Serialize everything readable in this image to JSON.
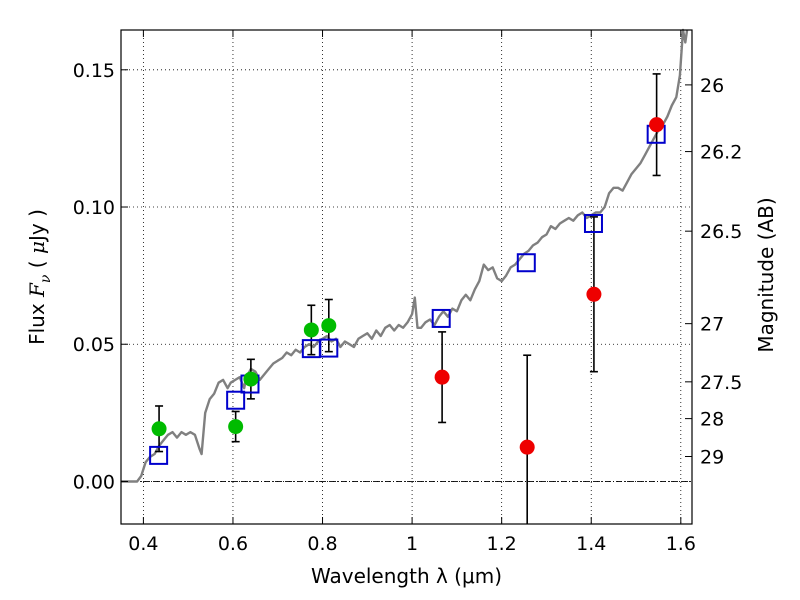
{
  "chart_data": {
    "type": "scatter",
    "title": "",
    "xlabel": "Wavelength  λ (μm)",
    "ylabel": {
      "prefix": "Flux  ",
      "symbol": "F",
      "subscript": "ν",
      "unit_open": " ( ",
      "unit_mu": "μ",
      "unit_rest": "Jy )"
    },
    "y2label": "Magnitude (AB)",
    "xlim": [
      0.35,
      1.625
    ],
    "ylim": [
      -0.0155,
      0.1645
    ],
    "xticks": [
      0.4,
      0.6,
      0.8,
      1.0,
      1.2,
      1.4,
      1.6
    ],
    "xtick_labels": [
      "0.4",
      "0.6",
      "0.8",
      "1",
      "1.2",
      "1.4",
      "1.6"
    ],
    "yticks": [
      0.0,
      0.05,
      0.1,
      0.15
    ],
    "ytick_labels": [
      "0.00",
      "0.05",
      "0.10",
      "0.15"
    ],
    "y2ticks": [
      {
        "label": "26",
        "flux": 0.1445
      },
      {
        "label": "26.2",
        "flux": 0.1202
      },
      {
        "label": "26.5",
        "flux": 0.0912
      },
      {
        "label": "27",
        "flux": 0.0575
      },
      {
        "label": "27.5",
        "flux": 0.0363
      },
      {
        "label": "28",
        "flux": 0.0229
      },
      {
        "label": "29",
        "flux": 0.0091
      }
    ],
    "grid": true,
    "zero_line": true,
    "series": [
      {
        "kind": "template",
        "color": "#808080",
        "points": [
          [
            0.35,
            0.0
          ],
          [
            0.386,
            0.0
          ],
          [
            0.395,
            0.002
          ],
          [
            0.405,
            0.007
          ],
          [
            0.415,
            0.009
          ],
          [
            0.425,
            0.01
          ],
          [
            0.435,
            0.013
          ],
          [
            0.445,
            0.015
          ],
          [
            0.455,
            0.017
          ],
          [
            0.465,
            0.018
          ],
          [
            0.475,
            0.016
          ],
          [
            0.485,
            0.018
          ],
          [
            0.495,
            0.017
          ],
          [
            0.505,
            0.018
          ],
          [
            0.515,
            0.017
          ],
          [
            0.525,
            0.012
          ],
          [
            0.53,
            0.01
          ],
          [
            0.538,
            0.025
          ],
          [
            0.548,
            0.03
          ],
          [
            0.558,
            0.032
          ],
          [
            0.568,
            0.036
          ],
          [
            0.578,
            0.037
          ],
          [
            0.588,
            0.034
          ],
          [
            0.595,
            0.036
          ],
          [
            0.605,
            0.037
          ],
          [
            0.615,
            0.038
          ],
          [
            0.625,
            0.034
          ],
          [
            0.63,
            0.038
          ],
          [
            0.64,
            0.041
          ],
          [
            0.65,
            0.04
          ],
          [
            0.66,
            0.037
          ],
          [
            0.67,
            0.039
          ],
          [
            0.68,
            0.041
          ],
          [
            0.69,
            0.043
          ],
          [
            0.7,
            0.044
          ],
          [
            0.71,
            0.045
          ],
          [
            0.72,
            0.047
          ],
          [
            0.73,
            0.046
          ],
          [
            0.74,
            0.048
          ],
          [
            0.75,
            0.047
          ],
          [
            0.76,
            0.049
          ],
          [
            0.77,
            0.05
          ],
          [
            0.78,
            0.049
          ],
          [
            0.79,
            0.051
          ],
          [
            0.8,
            0.052
          ],
          [
            0.81,
            0.053
          ],
          [
            0.82,
            0.051
          ],
          [
            0.83,
            0.052
          ],
          [
            0.84,
            0.049
          ],
          [
            0.85,
            0.051
          ],
          [
            0.86,
            0.05
          ],
          [
            0.87,
            0.049
          ],
          [
            0.88,
            0.052
          ],
          [
            0.89,
            0.053
          ],
          [
            0.9,
            0.054
          ],
          [
            0.91,
            0.052
          ],
          [
            0.92,
            0.055
          ],
          [
            0.93,
            0.053
          ],
          [
            0.94,
            0.056
          ],
          [
            0.95,
            0.057
          ],
          [
            0.96,
            0.055
          ],
          [
            0.97,
            0.057
          ],
          [
            0.98,
            0.056
          ],
          [
            0.99,
            0.058
          ],
          [
            1.0,
            0.061
          ],
          [
            1.006,
            0.067
          ],
          [
            1.012,
            0.056
          ],
          [
            1.02,
            0.056
          ],
          [
            1.03,
            0.058
          ],
          [
            1.04,
            0.059
          ],
          [
            1.05,
            0.057
          ],
          [
            1.06,
            0.06
          ],
          [
            1.07,
            0.062
          ],
          [
            1.08,
            0.06
          ],
          [
            1.09,
            0.063
          ],
          [
            1.1,
            0.062
          ],
          [
            1.11,
            0.066
          ],
          [
            1.12,
            0.068
          ],
          [
            1.13,
            0.066
          ],
          [
            1.14,
            0.07
          ],
          [
            1.15,
            0.073
          ],
          [
            1.16,
            0.079
          ],
          [
            1.17,
            0.077
          ],
          [
            1.18,
            0.078
          ],
          [
            1.19,
            0.074
          ],
          [
            1.2,
            0.073
          ],
          [
            1.21,
            0.075
          ],
          [
            1.22,
            0.078
          ],
          [
            1.23,
            0.079
          ],
          [
            1.24,
            0.081
          ],
          [
            1.25,
            0.083
          ],
          [
            1.26,
            0.084
          ],
          [
            1.27,
            0.086
          ],
          [
            1.28,
            0.087
          ],
          [
            1.29,
            0.089
          ],
          [
            1.3,
            0.09
          ],
          [
            1.31,
            0.093
          ],
          [
            1.32,
            0.092
          ],
          [
            1.33,
            0.094
          ],
          [
            1.34,
            0.095
          ],
          [
            1.35,
            0.096
          ],
          [
            1.36,
            0.095
          ],
          [
            1.37,
            0.097
          ],
          [
            1.38,
            0.098
          ],
          [
            1.39,
            0.096
          ],
          [
            1.4,
            0.097
          ],
          [
            1.41,
            0.098
          ],
          [
            1.42,
            0.098
          ],
          [
            1.43,
            0.1
          ],
          [
            1.44,
            0.105
          ],
          [
            1.45,
            0.107
          ],
          [
            1.46,
            0.107
          ],
          [
            1.47,
            0.106
          ],
          [
            1.48,
            0.109
          ],
          [
            1.49,
            0.112
          ],
          [
            1.5,
            0.114
          ],
          [
            1.51,
            0.116
          ],
          [
            1.52,
            0.119
          ],
          [
            1.53,
            0.122
          ],
          [
            1.54,
            0.125
          ],
          [
            1.55,
            0.128
          ],
          [
            1.56,
            0.13
          ],
          [
            1.57,
            0.133
          ],
          [
            1.58,
            0.137
          ],
          [
            1.59,
            0.14
          ],
          [
            1.598,
            0.148
          ],
          [
            1.605,
            0.165
          ],
          [
            1.61,
            0.16
          ],
          [
            1.614,
            0.165
          ]
        ]
      },
      {
        "kind": "model_squares",
        "color": "#0000cc",
        "x": [
          0.434,
          0.606,
          0.638,
          0.775,
          0.814,
          1.065,
          1.255,
          1.405,
          1.545
        ],
        "y": [
          0.0095,
          0.0296,
          0.0355,
          0.0484,
          0.0486,
          0.0594,
          0.0797,
          0.094,
          0.1265
        ]
      },
      {
        "kind": "green_points",
        "color": "#00bb00",
        "x": [
          0.435,
          0.606,
          0.64,
          0.775,
          0.814
        ],
        "y": [
          0.0192,
          0.02,
          0.0373,
          0.0552,
          0.0568
        ],
        "yerr": [
          0.0083,
          0.0055,
          0.0072,
          0.009,
          0.0095
        ]
      },
      {
        "kind": "red_points",
        "color": "#ee0000",
        "x": [
          1.067,
          1.257,
          1.406,
          1.546
        ],
        "y": [
          0.038,
          0.0125,
          0.0682,
          0.13
        ],
        "yerr": [
          0.0165,
          0.0335,
          0.0282,
          0.0185
        ]
      }
    ]
  }
}
